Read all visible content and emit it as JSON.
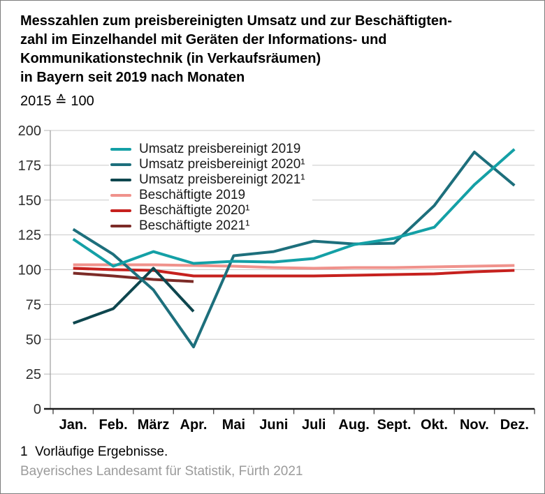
{
  "header": {
    "title": "Messzahlen zum preisbereinigten Umsatz und zur Beschäftigten-\nzahl im Einzelhandel mit Geräten der Informations- und\nKommunikationstechnik (in Verkaufsräumen)\nin Bayern seit 2019 nach Monaten",
    "subtitle": "2015 ≙ 100"
  },
  "footer": {
    "footnote": "1  Vorläufige Ergebnisse.",
    "source": "Bayerisches Landesamt für Statistik, Fürth 2021"
  },
  "chart_data": {
    "type": "line",
    "title": "Messzahlen zum preisbereinigten Umsatz und zur Beschäftigtenzahl im Einzelhandel mit Geräten der Informations- und Kommunikationstechnik (in Verkaufsräumen) in Bayern seit 2019 nach Monaten",
    "subtitle": "2015 ≙ 100",
    "xlabel": "",
    "ylabel": "",
    "categories": [
      "Jan.",
      "Feb.",
      "März",
      "Apr.",
      "Mai",
      "Juni",
      "Juli",
      "Aug.",
      "Sept.",
      "Okt.",
      "Nov.",
      "Dez."
    ],
    "yticks": [
      0,
      25,
      50,
      75,
      100,
      125,
      150,
      175,
      200
    ],
    "ylim": [
      0,
      200
    ],
    "grid": true,
    "legend_position": "top-left-inside",
    "series": [
      {
        "name": "Umsatz preisbereinigt 2019",
        "color": "#14a0a6",
        "values": [
          122,
          102.5,
          113,
          104.5,
          106,
          105.5,
          108,
          118,
          122.5,
          130.5,
          161,
          186.5
        ]
      },
      {
        "name": "Umsatz preisbereinigt 2020¹",
        "color": "#1d6f7c",
        "values": [
          129,
          111,
          85.5,
          44.5,
          110,
          113,
          120.5,
          118.5,
          119,
          146,
          184.5,
          160.5
        ]
      },
      {
        "name": "Umsatz preisbereinigt 2021¹",
        "color": "#0e464e",
        "values": [
          61.5,
          72,
          101,
          70,
          null,
          null,
          null,
          null,
          null,
          null,
          null,
          null
        ]
      },
      {
        "name": "Beschäftigte 2019",
        "color": "#f0928c",
        "values": [
          103.5,
          103.5,
          103.5,
          103,
          102.5,
          101.5,
          101,
          101.5,
          101.5,
          102,
          102.5,
          103
        ]
      },
      {
        "name": "Beschäftigte 2020¹",
        "color": "#c6211e",
        "values": [
          101,
          100,
          99.5,
          95.5,
          95.5,
          95.5,
          95.5,
          96,
          96.5,
          97,
          98.5,
          99.5
        ]
      },
      {
        "name": "Beschäftigte 2021¹",
        "color": "#7c2b27",
        "values": [
          97.5,
          95.5,
          93,
          91.5,
          null,
          null,
          null,
          null,
          null,
          null,
          null,
          null
        ]
      }
    ]
  }
}
